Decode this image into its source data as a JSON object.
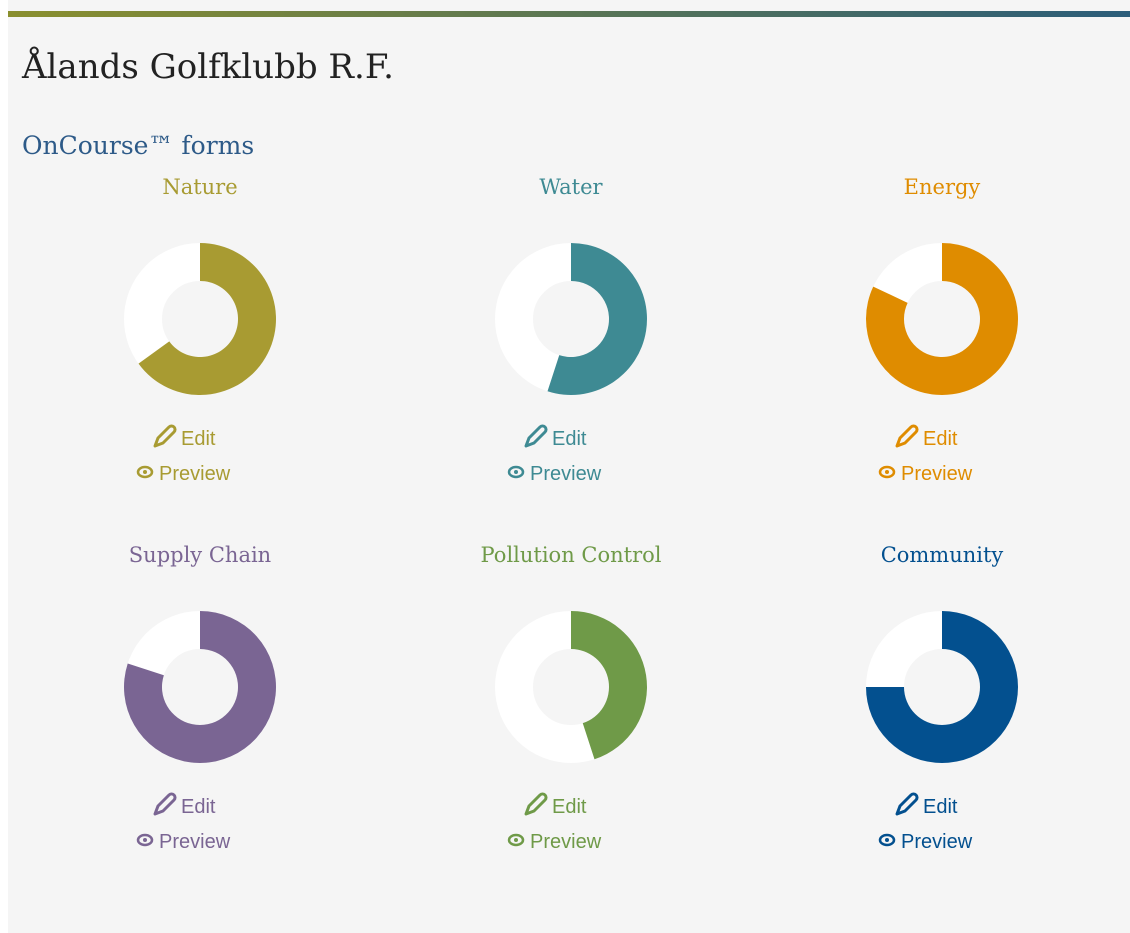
{
  "header": {
    "title": "Ålands Golfklubb R.F."
  },
  "section": {
    "title": "OnCourse™ forms"
  },
  "forms": [
    {
      "name": "Nature",
      "color": "#a89b32",
      "progress": 65,
      "edit": "Edit",
      "preview": "Preview"
    },
    {
      "name": "Water",
      "color": "#3e8a93",
      "progress": 55,
      "edit": "Edit",
      "preview": "Preview"
    },
    {
      "name": "Energy",
      "color": "#df8c00",
      "progress": 82,
      "edit": "Edit",
      "preview": "Preview"
    },
    {
      "name": "Supply Chain",
      "color": "#7a6593",
      "progress": 80,
      "edit": "Edit",
      "preview": "Preview"
    },
    {
      "name": "Pollution Control",
      "color": "#6f9a48",
      "progress": 45,
      "edit": "Edit",
      "preview": "Preview"
    },
    {
      "name": "Community",
      "color": "#03508f",
      "progress": 75,
      "edit": "Edit",
      "preview": "Preview"
    }
  ]
}
